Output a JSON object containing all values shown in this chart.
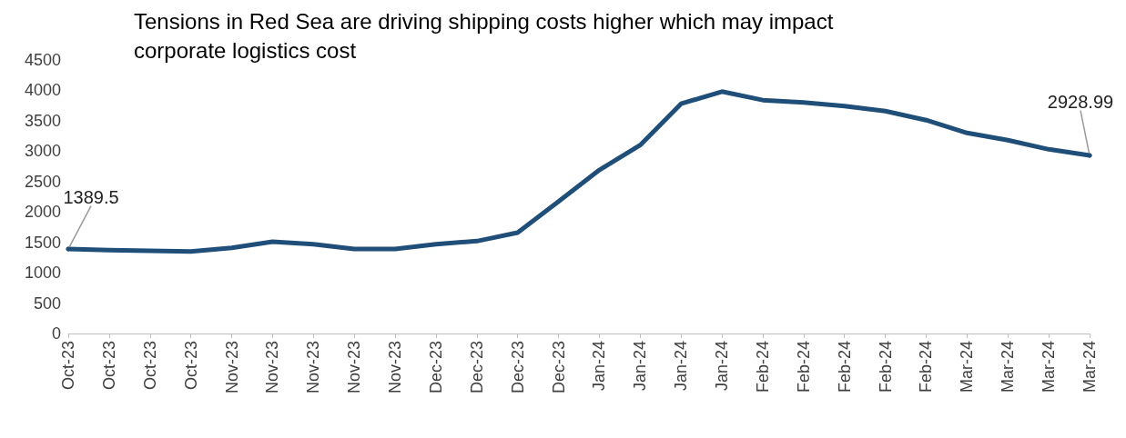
{
  "chart_data": {
    "type": "line",
    "title": "Tensions in Red Sea are driving shipping costs higher which may impact corporate logistics cost",
    "categories": [
      "Oct-23",
      "Oct-23",
      "Oct-23",
      "Oct-23",
      "Nov-23",
      "Nov-23",
      "Nov-23",
      "Nov-23",
      "Nov-23",
      "Dec-23",
      "Dec-23",
      "Dec-23",
      "Dec-23",
      "Jan-24",
      "Jan-24",
      "Jan-24",
      "Jan-24",
      "Feb-24",
      "Feb-24",
      "Feb-24",
      "Feb-24",
      "Feb-24",
      "Mar-24",
      "Mar-24",
      "Mar-24",
      "Mar-24"
    ],
    "series": [
      {
        "color": "#1f4e79",
        "values": [
          1389.5,
          1370,
          1360,
          1350,
          1410,
          1510,
          1470,
          1390,
          1390,
          1470,
          1520,
          1660,
          2170,
          2690,
          3100,
          3780,
          3980,
          3840,
          3800,
          3740,
          3660,
          3510,
          3300,
          3180,
          3030,
          2928.99
        ],
        "value_labels": [
          "1389.5",
          null,
          null,
          null,
          null,
          null,
          null,
          null,
          null,
          null,
          null,
          null,
          null,
          null,
          null,
          null,
          null,
          null,
          null,
          null,
          null,
          null,
          null,
          null,
          null,
          "2928.99"
        ]
      }
    ],
    "ylim": [
      0,
      4500
    ],
    "yticks": [
      0,
      500,
      1000,
      1500,
      2000,
      2500,
      3000,
      3500,
      4000,
      4500
    ],
    "grid": false,
    "marker": "none",
    "line_style": "solid"
  }
}
